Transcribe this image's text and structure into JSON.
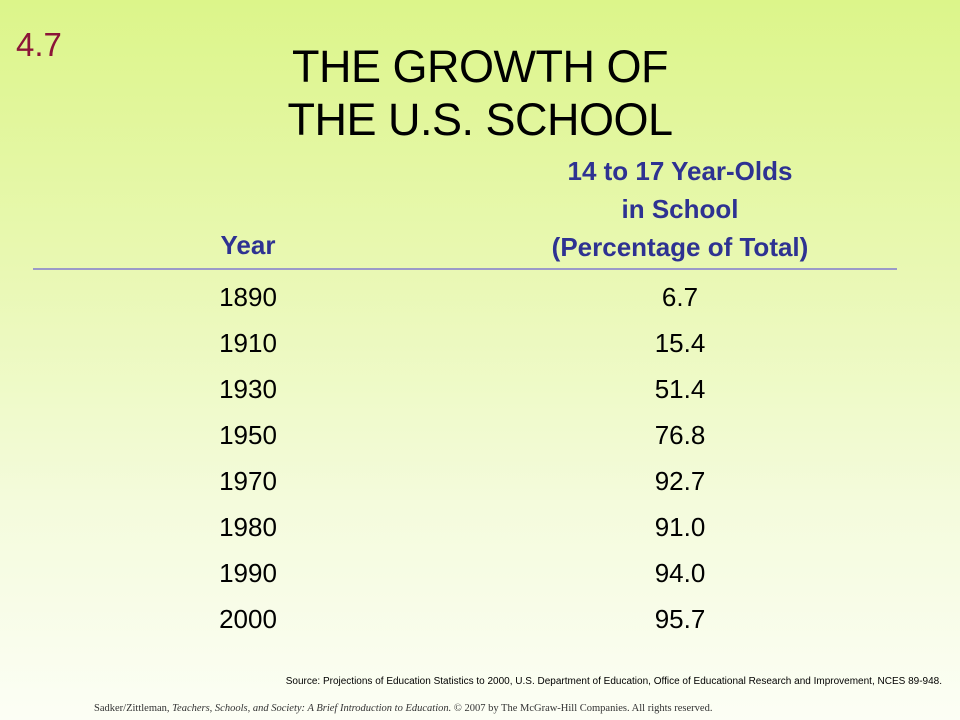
{
  "slide": {
    "number": "4.7",
    "title_line1": "THE GROWTH OF",
    "title_line2": "THE U.S. SCHOOL"
  },
  "table": {
    "header_year": "Year",
    "header_pct_line1": "14 to 17 Year-Olds",
    "header_pct_line2": "in School",
    "header_pct_line3": "(Percentage of Total)",
    "rows": [
      {
        "year": "1890",
        "pct": "6.7"
      },
      {
        "year": "1910",
        "pct": "15.4"
      },
      {
        "year": "1930",
        "pct": "51.4"
      },
      {
        "year": "1950",
        "pct": "76.8"
      },
      {
        "year": "1970",
        "pct": "92.7"
      },
      {
        "year": "1980",
        "pct": "91.0"
      },
      {
        "year": "1990",
        "pct": "94.0"
      },
      {
        "year": "2000",
        "pct": "95.7"
      }
    ]
  },
  "source": "Source: Projections of Education Statistics to 2000, U.S. Department of Education, Office of Educational Research and Improvement, NCES 89-948.",
  "footer": {
    "authors": "Sadker/Zittleman,",
    "book_title": "Teachers, Schools, and Society: A Brief Introduction to Education.",
    "copyright": "© 2007 by The McGraw-Hill Companies.  All rights reserved."
  },
  "colors": {
    "slide_number": "#8b1538",
    "header_text": "#2e3292",
    "rule": "#9a9ac8"
  }
}
